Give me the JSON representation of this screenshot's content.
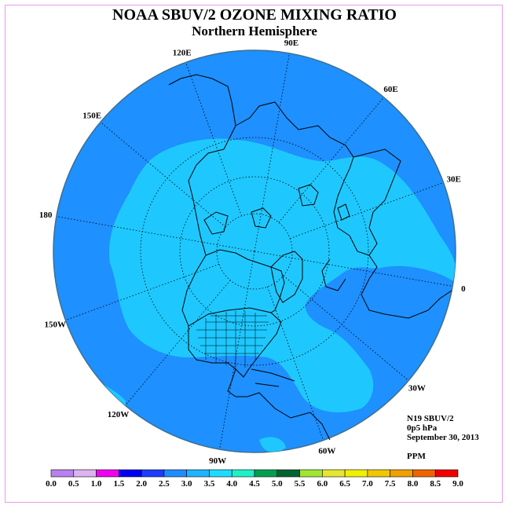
{
  "title": "NOAA SBUV/2 OZONE MIXING RATIO",
  "subtitle": "Northern Hemisphere",
  "longitude_labels": [
    "90E",
    "60E",
    "30E",
    "0",
    "30W",
    "60W",
    "90W",
    "120W",
    "150W",
    "180",
    "150E",
    "120E"
  ],
  "info": {
    "instrument": "N19 SBUV/2",
    "level": "0p5 hPa",
    "date": "September 30, 2013",
    "units": "PPM"
  },
  "colors": {
    "ocean_base": "#1e90ff",
    "high_ratio": "#1ec8ff",
    "coastline": "#000000",
    "graticule": "#000000",
    "frame": "#e6a0e6"
  },
  "legend": {
    "ticks": [
      "0.0",
      "0.5",
      "1.0",
      "1.5",
      "2.0",
      "2.5",
      "3.0",
      "3.5",
      "4.0",
      "4.5",
      "5.0",
      "5.5",
      "6.0",
      "6.5",
      "7.0",
      "7.5",
      "8.0",
      "8.5",
      "9.0"
    ],
    "colors": [
      "#b980f0",
      "#dcb4f0",
      "#f000f0",
      "#0000f0",
      "#1e3cff",
      "#1e8cff",
      "#1eb4ff",
      "#1edcff",
      "#1ef0c8",
      "#00a050",
      "#006432",
      "#a0e632",
      "#e6e632",
      "#f0f000",
      "#f0c800",
      "#f0a000",
      "#f06400",
      "#f00000",
      "#8c5a3c"
    ]
  }
}
